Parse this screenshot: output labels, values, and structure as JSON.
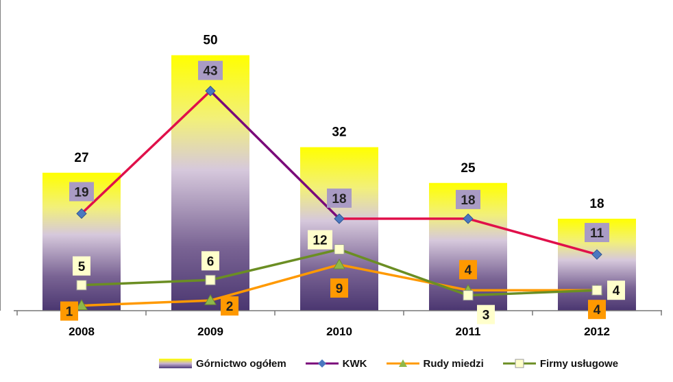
{
  "chart_data": {
    "type": "bar+line",
    "categories": [
      "2008",
      "2009",
      "2010",
      "2011",
      "2012"
    ],
    "ylim": [
      0,
      55
    ],
    "grid": false,
    "legend_position": "bottom",
    "series": [
      {
        "name": "Górnictwo ogółem",
        "kind": "bar",
        "values": [
          27,
          50,
          32,
          25,
          18
        ],
        "color": "#ffff00"
      },
      {
        "name": "KWK",
        "kind": "line",
        "values": [
          19,
          43,
          18,
          18,
          11
        ],
        "line_colors": [
          "#e0104a",
          "#7a0a7a",
          "#e0104a",
          "#e0104a"
        ],
        "marker": "diamond",
        "marker_color": "#4a78c0",
        "label_bg": "#a99bc4"
      },
      {
        "name": "Rudy miedzi",
        "kind": "line",
        "values": [
          1,
          2,
          9,
          4,
          4
        ],
        "color": "#ff9900",
        "marker": "triangle",
        "marker_color": "#8fb84a",
        "label_bg": "#ff9900"
      },
      {
        "name": "Firmy usługowe",
        "kind": "line",
        "values": [
          5,
          6,
          12,
          3,
          4
        ],
        "color": "#6b8e23",
        "marker": "square",
        "marker_color": "#ffffcc",
        "label_bg": "#ffffcc"
      }
    ],
    "bar_label_color": "#000000"
  }
}
